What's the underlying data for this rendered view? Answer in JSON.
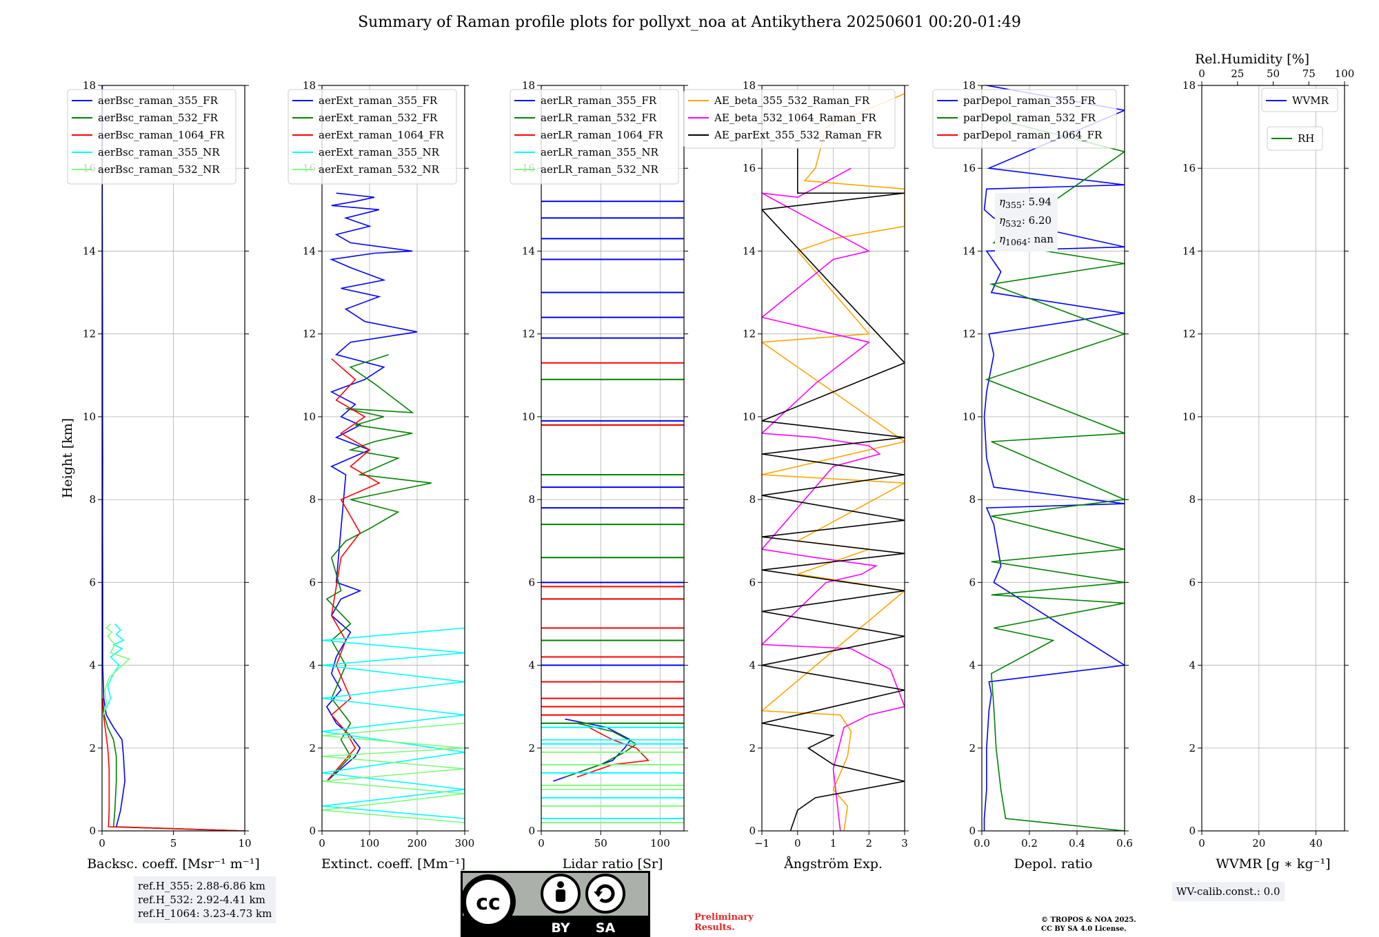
{
  "title": "Summary of Raman profile plots for pollyxt_noa at Antikythera 20250601 00:20-01:49",
  "shared_ylabel": "Height [km]",
  "chart_data": [
    {
      "type": "line",
      "xlabel": "Backsc. coeff. [Msr$^{-1}$ m$^{-1}$]",
      "xlabel_display": "Backsc. coeff. [Msr⁻¹ m⁻¹]",
      "xlim": [
        0,
        10
      ],
      "ylim": [
        0,
        18
      ],
      "xticks": [
        "0",
        "5",
        "10"
      ],
      "yticks": [
        "0",
        "2",
        "4",
        "6",
        "8",
        "10",
        "12",
        "14",
        "16",
        "18"
      ],
      "grid": true,
      "legend": "top-left",
      "series": [
        {
          "name": "aerBsc_raman_355_FR",
          "color": "#0000ff",
          "x": [
            10,
            1.0,
            1.3,
            1.6,
            1.5,
            1.4,
            0.8,
            0.3,
            0.12,
            0.05,
            0.05,
            0.05,
            0.04,
            0.05,
            0.04,
            0.04,
            0.03,
            0.02,
            0.02
          ],
          "y": [
            0,
            0.1,
            0.5,
            1.2,
            1.8,
            2.2,
            2.5,
            2.8,
            3.2,
            4.0,
            5.0,
            6.0,
            7.5,
            9.0,
            10.0,
            12.0,
            13.5,
            15.0,
            18.0
          ]
        },
        {
          "name": "aerBsc_raman_532_FR",
          "color": "#008000",
          "x": [
            10,
            0.8,
            0.9,
            1.0,
            1.0,
            0.8,
            0.4,
            0.15,
            0.05
          ],
          "y": [
            0,
            0.1,
            0.5,
            1.2,
            1.8,
            2.2,
            2.5,
            2.8,
            3.2
          ]
        },
        {
          "name": "aerBsc_raman_1064_FR",
          "color": "#ff0000",
          "x": [
            10,
            0.45,
            0.5,
            0.5,
            0.4,
            0.25,
            0.1,
            0.03
          ],
          "y": [
            0,
            0.1,
            0.5,
            1.5,
            2.0,
            2.4,
            2.8,
            3.2
          ]
        },
        {
          "name": "aerBsc_raman_355_NR",
          "color": "#00ffff",
          "x": [
            0.2,
            0.6,
            0.4,
            0.8,
            1.2,
            0.6,
            1.4,
            0.8,
            1.5,
            1.0,
            1.3,
            0.9
          ],
          "y": [
            2.9,
            3.2,
            3.5,
            3.8,
            4.0,
            4.2,
            4.4,
            4.5,
            4.6,
            4.75,
            4.85,
            5.0
          ]
        },
        {
          "name": "aerBsc_raman_532_NR",
          "color": "#7cfc7c",
          "x": [
            0.1,
            0.3,
            0.2,
            0.5,
            1.9,
            0.6,
            0.9,
            0.4,
            0.7,
            0.3,
            0.6
          ],
          "y": [
            2.8,
            3.1,
            3.4,
            3.7,
            4.15,
            4.3,
            4.5,
            4.7,
            4.8,
            4.9,
            5.0
          ]
        }
      ],
      "annotation": [
        "ref.H_355: 2.88-6.86 km",
        "ref.H_532: 2.92-4.41 km",
        "ref.H_1064: 3.23-4.73 km"
      ]
    },
    {
      "type": "line",
      "xlabel": "Extinct. coeff. [Mm$^{-1}$]",
      "xlabel_display": "Extinct. coeff. [Mm⁻¹]",
      "xlim": [
        0,
        300
      ],
      "ylim": [
        0,
        18
      ],
      "xticks": [
        "0",
        "100",
        "200",
        "300"
      ],
      "yticks": [
        "0",
        "2",
        "4",
        "6",
        "8",
        "10",
        "12",
        "14",
        "16",
        "18"
      ],
      "grid": true,
      "legend": "top-left",
      "series": [
        {
          "name": "aerExt_raman_355_FR",
          "color": "#0000ff",
          "x": [
            10,
            40,
            70,
            80,
            60,
            30,
            10,
            40,
            20,
            30,
            60,
            20,
            40,
            80,
            30,
            50,
            20,
            60,
            100,
            30,
            80,
            40,
            70,
            20,
            90,
            130,
            30,
            60,
            200,
            90,
            50,
            120,
            40,
            130,
            60,
            20,
            110,
            190,
            60,
            30,
            100,
            50,
            120,
            20,
            70,
            110,
            30
          ],
          "y": [
            1.2,
            1.5,
            1.8,
            2.0,
            2.3,
            2.6,
            3.0,
            3.4,
            3.8,
            4.2,
            4.8,
            5.2,
            5.6,
            5.8,
            6.0,
            8.6,
            8.8,
            9.0,
            9.2,
            9.5,
            9.8,
            10.0,
            10.3,
            10.6,
            10.9,
            11.2,
            11.5,
            11.8,
            12.05,
            12.3,
            12.6,
            12.9,
            13.1,
            13.3,
            13.6,
            13.8,
            13.95,
            14.0,
            14.2,
            14.4,
            14.6,
            14.8,
            15.0,
            15.1,
            15.2,
            15.3,
            15.4
          ]
        },
        {
          "name": "aerExt_raman_532_FR",
          "color": "#008000",
          "x": [
            20,
            60,
            40,
            60,
            20,
            50,
            20,
            60,
            10,
            40,
            20,
            50,
            100,
            160,
            60,
            230,
            80,
            160,
            60,
            110,
            190,
            70,
            130,
            50,
            190,
            110,
            60,
            140
          ],
          "y": [
            1.3,
            1.8,
            2.2,
            2.6,
            3.2,
            4.0,
            4.6,
            5.0,
            5.6,
            5.8,
            6.6,
            7.0,
            7.3,
            7.7,
            8.0,
            8.4,
            8.6,
            9.0,
            9.2,
            9.4,
            9.6,
            9.8,
            10.0,
            10.2,
            10.1,
            10.8,
            11.2,
            11.5
          ]
        },
        {
          "name": "aerExt_raman_1064_FR",
          "color": "#ff0000",
          "x": [
            10,
            40,
            70,
            50,
            20,
            60,
            30,
            50,
            20,
            40,
            80,
            40,
            120,
            60,
            100,
            40,
            90,
            30,
            70,
            20
          ],
          "y": [
            1.2,
            1.6,
            2.0,
            2.4,
            2.8,
            3.2,
            4.0,
            4.6,
            5.2,
            6.6,
            7.2,
            8.0,
            8.4,
            8.8,
            9.2,
            9.6,
            10.0,
            10.4,
            10.9,
            11.4
          ]
        },
        {
          "name": "aerExt_raman_355_NR",
          "color": "#00ffff",
          "x": [
            300,
            0,
            300,
            0,
            300,
            0,
            300,
            0,
            300,
            0,
            300,
            0,
            300
          ],
          "y": [
            0.3,
            0.6,
            1.0,
            1.4,
            1.9,
            2.4,
            2.8,
            3.2,
            3.6,
            4.0,
            4.3,
            4.6,
            4.9
          ]
        },
        {
          "name": "aerExt_raman_532_NR",
          "color": "#7cfc7c",
          "x": [
            300,
            0,
            300,
            0,
            300,
            0,
            300,
            0,
            300
          ],
          "y": [
            0.2,
            0.5,
            0.9,
            1.2,
            1.5,
            1.8,
            2.0,
            2.3,
            2.6
          ]
        }
      ]
    },
    {
      "type": "line",
      "xlabel": "Lidar ratio [Sr]",
      "xlim": [
        0,
        120
      ],
      "ylim": [
        0,
        18
      ],
      "xticks": [
        "0",
        "50",
        "100"
      ],
      "yticks": [
        "0",
        "2",
        "4",
        "6",
        "8",
        "10",
        "12",
        "14",
        "16",
        "18"
      ],
      "grid": true,
      "legend": "top-left",
      "series": [
        {
          "name": "aerLR_raman_355_FR",
          "color": "#0000ff",
          "x": [
            10,
            40,
            60,
            70,
            75,
            55,
            20
          ],
          "y": [
            1.2,
            1.5,
            1.7,
            2.0,
            2.2,
            2.5,
            2.7
          ],
          "horizontal_lines_km": [
            4.0,
            6.0,
            7.8,
            8.3,
            9.9,
            11.9,
            12.4,
            13.0,
            13.8,
            14.3,
            14.8,
            15.2
          ]
        },
        {
          "name": "aerLR_raman_532_FR",
          "color": "#008000",
          "x": [
            20,
            50,
            70,
            80,
            60,
            30
          ],
          "y": [
            1.3,
            1.6,
            1.9,
            2.1,
            2.4,
            2.6
          ],
          "horizontal_lines_km": [
            2.6,
            4.6,
            5.6,
            6.6,
            7.4,
            8.6,
            9.8,
            10.9
          ]
        },
        {
          "name": "aerLR_raman_1064_FR",
          "color": "#ff0000",
          "x": [
            30,
            60,
            90,
            80,
            60,
            40
          ],
          "y": [
            1.3,
            1.6,
            1.7,
            2.0,
            2.2,
            2.5
          ],
          "horizontal_lines_km": [
            2.8,
            3.0,
            3.2,
            3.6,
            4.2,
            4.9,
            5.6,
            5.9,
            9.8,
            11.3
          ]
        },
        {
          "name": "aerLR_raman_355_NR",
          "color": "#00ffff",
          "x": [
            0,
            120
          ],
          "y": [
            2.2,
            2.2
          ],
          "horizontal_lines_km": [
            0.3,
            0.8,
            1.4,
            2.1,
            2.5
          ]
        },
        {
          "name": "aerLR_raman_532_NR",
          "color": "#7cfc7c",
          "x": [
            0,
            120
          ],
          "y": [
            1.0,
            1.0
          ],
          "horizontal_lines_km": [
            0.2,
            0.6,
            1.1,
            1.6,
            1.9
          ]
        }
      ]
    },
    {
      "type": "line",
      "xlabel": "Ångström Exp.",
      "xlim": [
        -1,
        3
      ],
      "ylim": [
        0,
        18
      ],
      "xticks": [
        "−1",
        "0",
        "1",
        "2",
        "3"
      ],
      "yticks": [
        "0",
        "2",
        "4",
        "6",
        "8",
        "10",
        "12",
        "14",
        "16",
        "18"
      ],
      "grid": true,
      "legend": "top-left",
      "series": [
        {
          "name": "AE_beta_355_532_Raman_FR",
          "color": "#ffa500",
          "x": [
            1.3,
            1.4,
            1.0,
            1.4,
            1.5,
            1.2,
            -1.0,
            3.0,
            0.0,
            2.0,
            0.0,
            3.0,
            -1.0,
            1.0,
            3.0,
            -1.0,
            2.0,
            0.0,
            1.0,
            3.0,
            3.0,
            0.2,
            0.5,
            0.8,
            3.0
          ],
          "y": [
            0.0,
            0.6,
            1.0,
            1.8,
            2.4,
            2.8,
            2.9,
            5.8,
            6.2,
            6.8,
            7.0,
            8.4,
            8.6,
            9.0,
            9.4,
            11.8,
            12.0,
            14.0,
            14.3,
            14.6,
            15.5,
            15.7,
            16.0,
            17.0,
            17.8
          ]
        },
        {
          "name": "AE_beta_532_1064_Raman_FR",
          "color": "#ff00ff",
          "x": [
            1.2,
            1.0,
            1.3,
            2.0,
            3.0,
            2.6,
            1.5,
            -1.0,
            0.8,
            1.8,
            2.2,
            0.5,
            -1.0,
            1.0,
            2.3,
            2.0,
            0.5,
            -1.0,
            0.5,
            2.0,
            1.0,
            -1.0,
            1.0,
            2.0,
            -1.0,
            0.0,
            1.5
          ],
          "y": [
            0.0,
            1.5,
            2.5,
            2.8,
            3.0,
            3.9,
            4.4,
            4.5,
            6.0,
            6.2,
            6.4,
            6.6,
            6.8,
            8.8,
            9.1,
            9.3,
            9.5,
            9.6,
            10.8,
            11.8,
            12.0,
            12.4,
            13.8,
            14.0,
            15.4,
            15.3,
            16.0
          ]
        },
        {
          "name": "AE_parExt_355_532_Raman_FR",
          "color": "#000000",
          "x": [
            -0.2,
            0.0,
            0.5,
            3.0,
            1.0,
            0.3,
            1.0,
            -1.0,
            3.0,
            -1.0,
            3.0,
            -1.0,
            3.0,
            -1.0,
            3.0,
            -1.0,
            3.0,
            -1.0,
            3.0,
            -1.0,
            3.0,
            -1.0,
            3.0,
            -1.0,
            3.0,
            0.0,
            0.0,
            0.0
          ],
          "y": [
            0.0,
            0.5,
            0.8,
            1.2,
            1.6,
            2.0,
            2.3,
            2.6,
            3.4,
            4.0,
            4.7,
            5.3,
            5.8,
            6.3,
            6.7,
            7.1,
            7.5,
            8.1,
            8.6,
            9.1,
            9.5,
            9.9,
            11.3,
            15.0,
            15.4,
            15.4,
            16.0,
            16.5
          ]
        }
      ]
    },
    {
      "type": "line",
      "xlabel": "Depol. ratio",
      "xlim": [
        0.0,
        0.6
      ],
      "ylim": [
        0,
        18
      ],
      "xticks": [
        "0.0",
        "0.2",
        "0.4",
        "0.6"
      ],
      "yticks": [
        "0",
        "2",
        "4",
        "6",
        "8",
        "10",
        "12",
        "14",
        "16",
        "18"
      ],
      "grid": true,
      "legend": "top-left",
      "series": [
        {
          "name": "parDepol_raman_355_FR",
          "color": "#0000ff",
          "x": [
            0.01,
            0.01,
            0.02,
            0.02,
            0.03,
            0.04,
            0.03,
            0.6,
            0.05,
            0.08,
            0.05,
            0.02,
            0.6,
            0.05,
            0.02,
            0.01,
            0.02,
            0.05,
            0.03,
            0.6,
            0.04,
            0.08,
            0.02,
            0.6,
            0.05,
            0.01,
            0.02,
            0.6,
            0.03,
            0.6,
            0.02
          ],
          "y": [
            0.0,
            0.3,
            1.0,
            2.0,
            2.9,
            3.3,
            3.6,
            4.0,
            6.0,
            6.4,
            7.4,
            7.8,
            7.9,
            8.3,
            9.0,
            10.0,
            10.6,
            11.5,
            12.0,
            12.5,
            13.0,
            13.5,
            14.0,
            14.1,
            14.8,
            15.0,
            15.5,
            15.6,
            16.0,
            17.4,
            18.0
          ]
        },
        {
          "name": "parDepol_raman_532_FR",
          "color": "#008000",
          "x": [
            0.6,
            0.1,
            0.08,
            0.06,
            0.05,
            0.04,
            0.3,
            0.05,
            0.6,
            0.04,
            0.6,
            0.04,
            0.6,
            0.04,
            0.6,
            0.04,
            0.6,
            0.02,
            0.6,
            0.04,
            0.6,
            0.05,
            0.6,
            0.05
          ],
          "y": [
            0.0,
            0.3,
            1.0,
            2.0,
            3.0,
            3.8,
            4.6,
            4.9,
            5.5,
            5.7,
            6.0,
            6.5,
            6.8,
            7.6,
            8.0,
            9.4,
            9.6,
            10.9,
            12.0,
            13.2,
            13.7,
            14.2,
            16.4,
            17.2
          ]
        },
        {
          "name": "parDepol_raman_1064_FR",
          "color": "#ff0000",
          "x": [
            0.0,
            0.0
          ],
          "y": [
            0.0,
            0.0
          ]
        }
      ],
      "annotation": [
        "η",
        "355",
        ": 5.94",
        "532",
        ": 6.20",
        "1064",
        ": nan"
      ]
    },
    {
      "type": "line",
      "xlabel": "WVMR [$g*kg^{-1}$]",
      "xlabel_display": "WVMR [g ∗ kg⁻¹]",
      "xlim": [
        0,
        50
      ],
      "ylim": [
        0,
        18
      ],
      "xticks": [
        "0",
        "20",
        "40"
      ],
      "top_xlabel": "Rel.Humidity [%]",
      "top_xlim": [
        0,
        100
      ],
      "top_xticks": [
        "0",
        "25",
        "50",
        "75",
        "100"
      ],
      "yticks": [
        "0",
        "2",
        "4",
        "6",
        "8",
        "10",
        "12",
        "14",
        "16",
        "18"
      ],
      "grid": true,
      "legend": "top-right",
      "series": [
        {
          "name": "WVMR",
          "color": "#0000ff",
          "x": [],
          "y": []
        },
        {
          "name": "RH",
          "color": "#008000",
          "x": [],
          "y": []
        }
      ],
      "annotation": [
        "WV-calib.const.: 0.0"
      ]
    }
  ],
  "footer": {
    "preliminary": [
      "Preliminary",
      "Results."
    ],
    "copyright": [
      "© TROPOS & NOA 2025.",
      "CC BY SA 4.0 License."
    ],
    "license_badge": {
      "main": "cc",
      "left": "BY",
      "right": "SA"
    }
  }
}
